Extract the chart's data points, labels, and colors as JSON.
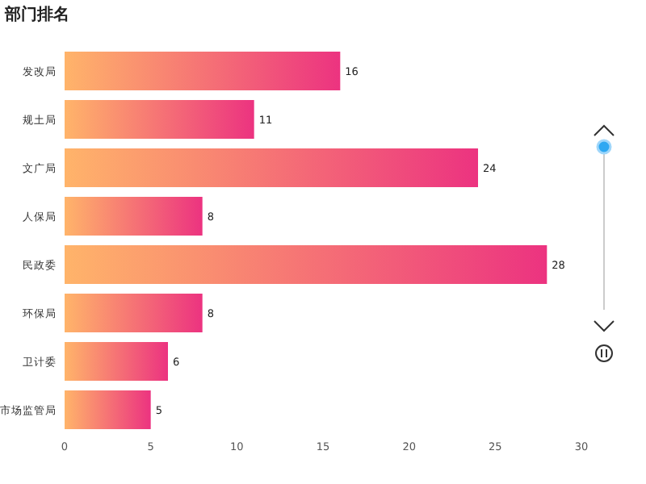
{
  "chart_data": {
    "type": "bar",
    "title": "部门排名",
    "orientation": "horizontal",
    "categories": [
      "发改局",
      "规土局",
      "文广局",
      "人保局",
      "民政委",
      "环保局",
      "卫计委",
      "市场监管局"
    ],
    "series": [
      {
        "color": "#ec3380",
        "values": [
          16,
          11,
          24,
          8,
          28,
          8,
          6,
          5
        ]
      }
    ],
    "xlim": [
      0,
      30
    ],
    "xticks": [
      0,
      5,
      10,
      15,
      20,
      25,
      30
    ],
    "data_labels": true
  }
}
